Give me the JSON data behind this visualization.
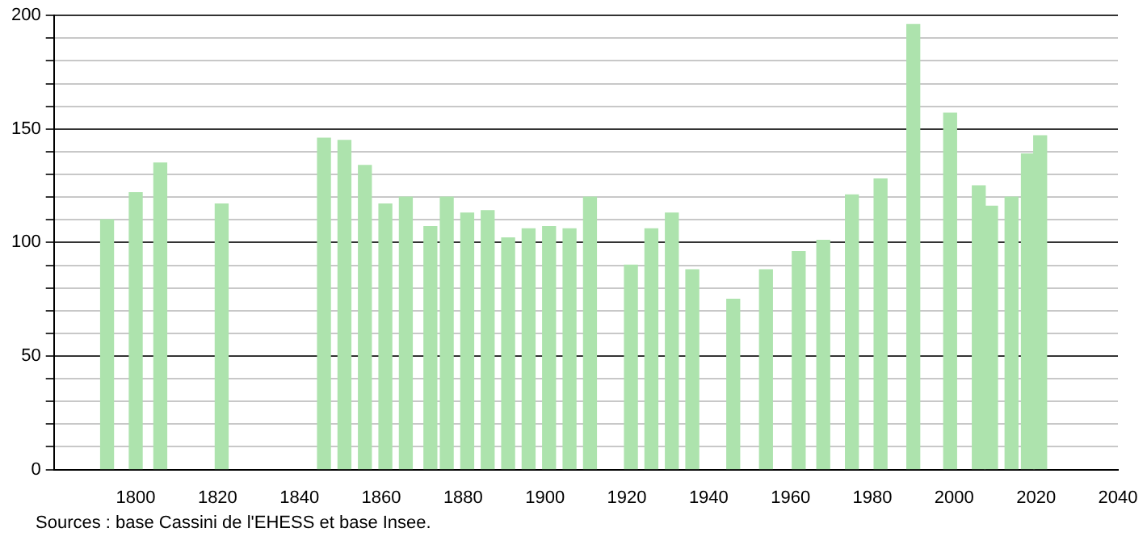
{
  "chart_data": {
    "type": "bar",
    "x": [
      1793,
      1800,
      1806,
      1821,
      1846,
      1851,
      1856,
      1861,
      1866,
      1872,
      1876,
      1881,
      1886,
      1891,
      1896,
      1901,
      1906,
      1911,
      1921,
      1926,
      1931,
      1936,
      1946,
      1954,
      1962,
      1968,
      1975,
      1982,
      1990,
      1999,
      2006,
      2009,
      2014,
      2018,
      2021
    ],
    "values": [
      110,
      122,
      135,
      117,
      146,
      145,
      134,
      117,
      120,
      107,
      120,
      113,
      114,
      102,
      106,
      107,
      106,
      120,
      90,
      106,
      113,
      88,
      75,
      88,
      96,
      101,
      121,
      128,
      196,
      157,
      125,
      116,
      120,
      139,
      147
    ],
    "color": "#ade3ad",
    "xlim": [
      1780,
      2040
    ],
    "xticks": [
      1800,
      1820,
      1840,
      1860,
      1880,
      1900,
      1920,
      1940,
      1960,
      1980,
      2000,
      2020,
      2040
    ],
    "ylim": [
      0,
      200
    ],
    "yticks": [
      0,
      {
        "value": 10,
        "label": null
      },
      {
        "value": 20,
        "label": null
      },
      {
        "value": 30,
        "label": null
      },
      {
        "value": 40,
        "label": null
      },
      50,
      {
        "value": 60,
        "label": null
      },
      {
        "value": 70,
        "label": null
      },
      {
        "value": 80,
        "label": null
      },
      {
        "value": 90,
        "label": null
      },
      100,
      {
        "value": 110,
        "label": null
      },
      {
        "value": 120,
        "label": null
      },
      {
        "value": 130,
        "label": null
      },
      {
        "value": 140,
        "label": null
      },
      150,
      {
        "value": 160,
        "label": null
      },
      {
        "value": 170,
        "label": null
      },
      {
        "value": 180,
        "label": null
      },
      {
        "value": 190,
        "label": null
      },
      200
    ],
    "grid": "y",
    "annotations": [
      "Sources : base Cassini de l'EHESS et base Insee."
    ]
  }
}
